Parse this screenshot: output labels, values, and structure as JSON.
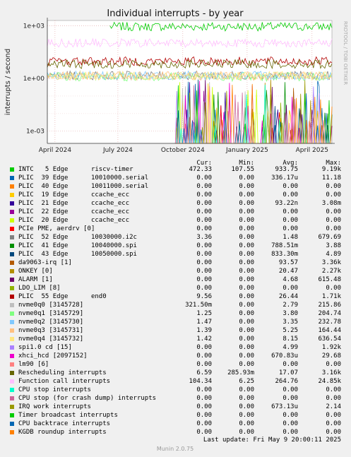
{
  "title": "Individual interrupts - by year",
  "ylabel": "interrupts / second",
  "side_text": "RRDTOOL / TOBI OETIKER",
  "footer": "Munin 2.0.75",
  "last_update": "Last update: Fri May  9 20:00:11 2025",
  "columns": [
    "Cur:",
    "Min:",
    "Avg:",
    "Max:"
  ],
  "colors": {
    "background": "#f0f0f0",
    "plot_bg": "#ffffff",
    "grid": "#e0c0c0",
    "frame": "#888888"
  },
  "chart_data": {
    "type": "line",
    "title": "Individual interrupts - by year",
    "ylabel": "interrupts / second",
    "yscale": "log",
    "ylim": [
      0.0002,
      2000
    ],
    "y_ticks": [
      "1e+03",
      "1e+00",
      "1e-03"
    ],
    "x_ticks": [
      "April 2024",
      "July 2024",
      "October 2024",
      "January 2025",
      "April 2025"
    ],
    "grid": true,
    "series": [
      {
        "name": "INTC   5 Edge      riscv-timer",
        "color": "#00cc00",
        "level": 900,
        "start": 0.22,
        "cur": "472.33",
        "min": "107.55",
        "avg": "933.75",
        "max": "9.19k"
      },
      {
        "name": "PLIC  39 Edge      10010000.serial",
        "color": "#0066b3",
        "level": 0,
        "start": 0.45,
        "cur": "0.00",
        "min": "0.00",
        "avg": "336.17u",
        "max": "11.18"
      },
      {
        "name": "PLIC  40 Edge      10011000.serial",
        "color": "#ff8000",
        "level": 0,
        "start": 0.45,
        "cur": "0.00",
        "min": "0.00",
        "avg": "0.00",
        "max": "0.00"
      },
      {
        "name": "PLIC  19 Edge      ccache_ecc",
        "color": "#ffcc00",
        "level": 0,
        "start": 0.45,
        "cur": "0.00",
        "min": "0.00",
        "avg": "0.00",
        "max": "0.00"
      },
      {
        "name": "PLIC  21 Edge      ccache_ecc",
        "color": "#330099",
        "level": 0,
        "start": 0.45,
        "cur": "0.00",
        "min": "0.00",
        "avg": "93.22n",
        "max": "3.08m"
      },
      {
        "name": "PLIC  22 Edge      ccache_ecc",
        "color": "#990099",
        "level": 0,
        "start": 0.45,
        "cur": "0.00",
        "min": "0.00",
        "avg": "0.00",
        "max": "0.00"
      },
      {
        "name": "PLIC  20 Edge      ccache_ecc",
        "color": "#ccff00",
        "level": 0,
        "start": 0.45,
        "cur": "0.00",
        "min": "0.00",
        "avg": "0.00",
        "max": "0.00"
      },
      {
        "name": "PCIe PME, aerdrv [0]",
        "color": "#ff0000",
        "level": 0,
        "start": 0.45,
        "cur": "0.00",
        "min": "0.00",
        "avg": "0.00",
        "max": "0.00"
      },
      {
        "name": "PLIC  52 Edge      10030000.i2c",
        "color": "#808080",
        "level": 1.48,
        "start": 0.0,
        "cur": "3.36",
        "min": "0.00",
        "avg": "1.48",
        "max": "679.69"
      },
      {
        "name": "PLIC  41 Edge      10040000.spi",
        "color": "#008f00",
        "level": 0,
        "start": 0.45,
        "cur": "0.00",
        "min": "0.00",
        "avg": "788.51m",
        "max": "3.88"
      },
      {
        "name": "PLIC  43 Edge      10050000.spi",
        "color": "#00487d",
        "level": 0,
        "start": 0.45,
        "cur": "0.00",
        "min": "0.00",
        "avg": "833.30m",
        "max": "4.89"
      },
      {
        "name": "da9063-irq [1]",
        "color": "#b35a00",
        "level": 0,
        "start": 0.45,
        "cur": "0.00",
        "min": "0.00",
        "avg": "93.57",
        "max": "3.36k"
      },
      {
        "name": "ONKEY [0]",
        "color": "#b38f00",
        "level": 0,
        "start": 0.45,
        "cur": "0.00",
        "min": "0.00",
        "avg": "20.47",
        "max": "2.27k"
      },
      {
        "name": "ALARM [1]",
        "color": "#6b006b",
        "level": 0,
        "start": 0.45,
        "cur": "0.00",
        "min": "0.00",
        "avg": "4.68",
        "max": "615.48"
      },
      {
        "name": "LDO_LIM [8]",
        "color": "#8fb300",
        "level": 0,
        "start": 0.45,
        "cur": "0.00",
        "min": "0.00",
        "avg": "0.00",
        "max": "0.00"
      },
      {
        "name": "PLIC  55 Edge      end0",
        "color": "#b30000",
        "level": 9.56,
        "start": 0.0,
        "cur": "9.56",
        "min": "0.00",
        "avg": "26.44",
        "max": "1.71k"
      },
      {
        "name": "nvme0q0 [3145728]",
        "color": "#bebebe",
        "level": 0,
        "start": 0.45,
        "cur": "321.50m",
        "min": "0.00",
        "avg": "2.79",
        "max": "215.86"
      },
      {
        "name": "nvme0q1 [3145729]",
        "color": "#80ff80",
        "level": 1.25,
        "start": 0.0,
        "cur": "1.25",
        "min": "0.00",
        "avg": "3.80",
        "max": "204.74"
      },
      {
        "name": "nvme0q2 [3145730]",
        "color": "#80c9ff",
        "level": 1.47,
        "start": 0.0,
        "cur": "1.47",
        "min": "0.00",
        "avg": "3.35",
        "max": "232.78"
      },
      {
        "name": "nvme0q3 [3145731]",
        "color": "#ffc080",
        "level": 1.39,
        "start": 0.0,
        "cur": "1.39",
        "min": "0.00",
        "avg": "5.25",
        "max": "164.44"
      },
      {
        "name": "nvme0q4 [3145732]",
        "color": "#ffe680",
        "level": 1.42,
        "start": 0.0,
        "cur": "1.42",
        "min": "0.00",
        "avg": "8.15",
        "max": "636.54"
      },
      {
        "name": "spi1.0 cd [15]",
        "color": "#aa80ff",
        "level": 0,
        "start": 0.45,
        "cur": "0.00",
        "min": "0.00",
        "avg": "4.99",
        "max": "1.92k"
      },
      {
        "name": "xhci_hcd [2097152]",
        "color": "#ee00cc",
        "level": 0,
        "start": 0.45,
        "cur": "0.00",
        "min": "0.00",
        "avg": "670.83u",
        "max": "29.68"
      },
      {
        "name": "lm90 [6]",
        "color": "#ff8080",
        "level": 0,
        "start": 0.45,
        "cur": "0.00",
        "min": "0.00",
        "avg": "0.00",
        "max": "0.00"
      },
      {
        "name": "Rescheduling interrupts",
        "color": "#666600",
        "level": 6.59,
        "start": 0.0,
        "cur": "6.59",
        "min": "285.93m",
        "avg": "17.07",
        "max": "3.16k"
      },
      {
        "name": "Function call interrupts",
        "color": "#ffbfff",
        "level": 104.34,
        "start": 0.0,
        "cur": "104.34",
        "min": "6.25",
        "avg": "264.76",
        "max": "24.85k"
      },
      {
        "name": "CPU stop interrupts",
        "color": "#00ffcc",
        "level": 0,
        "start": 0.45,
        "cur": "0.00",
        "min": "0.00",
        "avg": "0.00",
        "max": "0.00"
      },
      {
        "name": "CPU stop (for crash dump) interrupts",
        "color": "#cc6699",
        "level": 0,
        "start": 0.45,
        "cur": "0.00",
        "min": "0.00",
        "avg": "0.00",
        "max": "0.00"
      },
      {
        "name": "IRQ work interrupts",
        "color": "#999900",
        "level": 0,
        "start": 0.45,
        "cur": "0.00",
        "min": "0.00",
        "avg": "673.13u",
        "max": "2.14"
      },
      {
        "name": "Timer broadcast interrupts",
        "color": "#00cc00",
        "level": 0,
        "start": 0.45,
        "cur": "0.00",
        "min": "0.00",
        "avg": "0.00",
        "max": "0.00"
      },
      {
        "name": "CPU backtrace interrupts",
        "color": "#0066b3",
        "level": 0,
        "start": 0.45,
        "cur": "0.00",
        "min": "0.00",
        "avg": "0.00",
        "max": "0.00"
      },
      {
        "name": "KGDB roundup interrupts",
        "color": "#ff8000",
        "level": 0,
        "start": 0.45,
        "cur": "0.00",
        "min": "0.00",
        "avg": "0.00",
        "max": "0.00"
      }
    ]
  }
}
